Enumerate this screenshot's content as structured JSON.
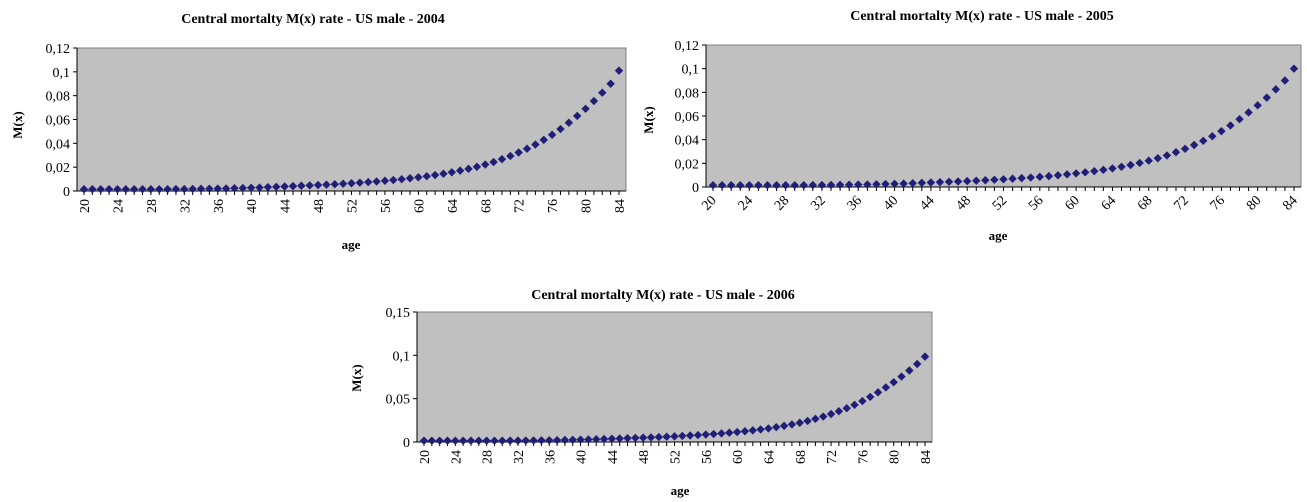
{
  "chart_data": [
    {
      "type": "scatter",
      "title": "Central mortalty M(x) rate - US male - 2004",
      "xlabel": "age",
      "ylabel": "M(x)",
      "ylim": [
        0,
        0.12
      ],
      "yticks": [
        "0",
        "0,02",
        "0,04",
        "0,06",
        "0,08",
        "0,1",
        "0,12"
      ],
      "xticks": [
        "20",
        "24",
        "28",
        "32",
        "36",
        "40",
        "44",
        "48",
        "52",
        "56",
        "60",
        "64",
        "68",
        "72",
        "76",
        "80",
        "84"
      ],
      "xtick_rotation": "vertical",
      "marker": "diamond",
      "color": "#1f1f7a",
      "plot_background": "#c0c0c0",
      "series": [
        {
          "x": [
            20,
            21,
            22,
            23,
            24,
            25,
            26,
            27,
            28,
            29,
            30,
            31,
            32,
            33,
            34,
            35,
            36,
            37,
            38,
            39,
            40,
            41,
            42,
            43,
            44,
            45,
            46,
            47,
            48,
            49,
            50,
            51,
            52,
            53,
            54,
            55,
            56,
            57,
            58,
            59,
            60,
            61,
            62,
            63,
            64,
            65,
            66,
            67,
            68,
            69,
            70,
            71,
            72,
            73,
            74,
            75,
            76,
            77,
            78,
            79,
            80,
            81,
            82,
            83,
            84
          ],
          "values": [
            0.0015,
            0.0015,
            0.0015,
            0.0015,
            0.0015,
            0.0015,
            0.0015,
            0.0015,
            0.0015,
            0.0015,
            0.0015,
            0.0016,
            0.0016,
            0.0017,
            0.0018,
            0.0019,
            0.002,
            0.0021,
            0.0023,
            0.0025,
            0.0027,
            0.0029,
            0.0032,
            0.0035,
            0.0038,
            0.0041,
            0.0044,
            0.0047,
            0.005,
            0.0053,
            0.0057,
            0.0061,
            0.0065,
            0.007,
            0.0075,
            0.008,
            0.0086,
            0.0092,
            0.0099,
            0.0107,
            0.0115,
            0.0124,
            0.0134,
            0.0145,
            0.0157,
            0.0171,
            0.0186,
            0.0203,
            0.0222,
            0.0243,
            0.0267,
            0.0294,
            0.0323,
            0.0355,
            0.039,
            0.0429,
            0.0472,
            0.052,
            0.0573,
            0.063,
            0.069,
            0.0755,
            0.0825,
            0.09,
            0.101
          ]
        }
      ]
    },
    {
      "type": "scatter",
      "title": "Central mortalty M(x) rate - US male - 2005",
      "xlabel": "age",
      "ylabel": "M(x)",
      "ylim": [
        0,
        0.12
      ],
      "yticks": [
        "0",
        "0,02",
        "0,04",
        "0,06",
        "0,08",
        "0,1",
        "0,12"
      ],
      "xticks": [
        "20",
        "24",
        "28",
        "32",
        "36",
        "40",
        "44",
        "48",
        "52",
        "56",
        "60",
        "64",
        "68",
        "72",
        "76",
        "80",
        "84"
      ],
      "xtick_rotation": "diagonal",
      "marker": "diamond",
      "color": "#1f1f7a",
      "plot_background": "#c0c0c0",
      "series": [
        {
          "x": [
            20,
            21,
            22,
            23,
            24,
            25,
            26,
            27,
            28,
            29,
            30,
            31,
            32,
            33,
            34,
            35,
            36,
            37,
            38,
            39,
            40,
            41,
            42,
            43,
            44,
            45,
            46,
            47,
            48,
            49,
            50,
            51,
            52,
            53,
            54,
            55,
            56,
            57,
            58,
            59,
            60,
            61,
            62,
            63,
            64,
            65,
            66,
            67,
            68,
            69,
            70,
            71,
            72,
            73,
            74,
            75,
            76,
            77,
            78,
            79,
            80,
            81,
            82,
            83,
            84
          ],
          "values": [
            0.0015,
            0.0015,
            0.0015,
            0.0015,
            0.0015,
            0.0015,
            0.0015,
            0.0015,
            0.0015,
            0.0015,
            0.0015,
            0.0016,
            0.0016,
            0.0017,
            0.0018,
            0.0019,
            0.002,
            0.0021,
            0.0023,
            0.0025,
            0.0027,
            0.0029,
            0.0032,
            0.0035,
            0.0038,
            0.0041,
            0.0044,
            0.0047,
            0.005,
            0.0053,
            0.0057,
            0.0061,
            0.0065,
            0.007,
            0.0075,
            0.008,
            0.0086,
            0.0092,
            0.0099,
            0.0107,
            0.0115,
            0.0124,
            0.0134,
            0.0145,
            0.0157,
            0.0171,
            0.0186,
            0.0203,
            0.0222,
            0.0243,
            0.0267,
            0.0294,
            0.0323,
            0.0355,
            0.039,
            0.0429,
            0.0472,
            0.052,
            0.0573,
            0.063,
            0.069,
            0.0755,
            0.0825,
            0.09,
            0.1
          ]
        }
      ]
    },
    {
      "type": "scatter",
      "title": "Central mortalty M(x) rate - US male - 2006",
      "xlabel": "age",
      "ylabel": "M(x)",
      "ylim": [
        0,
        0.15
      ],
      "yticks": [
        "0",
        "0,05",
        "0,1",
        "0,15"
      ],
      "xticks": [
        "20",
        "24",
        "28",
        "32",
        "36",
        "40",
        "44",
        "48",
        "52",
        "56",
        "60",
        "64",
        "68",
        "72",
        "76",
        "80",
        "84"
      ],
      "xtick_rotation": "vertical",
      "marker": "diamond",
      "color": "#1f1f7a",
      "plot_background": "#c0c0c0",
      "series": [
        {
          "x": [
            20,
            21,
            22,
            23,
            24,
            25,
            26,
            27,
            28,
            29,
            30,
            31,
            32,
            33,
            34,
            35,
            36,
            37,
            38,
            39,
            40,
            41,
            42,
            43,
            44,
            45,
            46,
            47,
            48,
            49,
            50,
            51,
            52,
            53,
            54,
            55,
            56,
            57,
            58,
            59,
            60,
            61,
            62,
            63,
            64,
            65,
            66,
            67,
            68,
            69,
            70,
            71,
            72,
            73,
            74,
            75,
            76,
            77,
            78,
            79,
            80,
            81,
            82,
            83,
            84
          ],
          "values": [
            0.0015,
            0.0015,
            0.0015,
            0.0015,
            0.0015,
            0.0015,
            0.0015,
            0.0015,
            0.0015,
            0.0015,
            0.0015,
            0.0016,
            0.0016,
            0.0017,
            0.0018,
            0.0019,
            0.002,
            0.0021,
            0.0023,
            0.0025,
            0.0027,
            0.0029,
            0.0032,
            0.0035,
            0.0038,
            0.0041,
            0.0044,
            0.0047,
            0.005,
            0.0053,
            0.0057,
            0.0061,
            0.0065,
            0.007,
            0.0075,
            0.008,
            0.0086,
            0.0092,
            0.0099,
            0.0107,
            0.0115,
            0.0124,
            0.0134,
            0.0145,
            0.0157,
            0.0171,
            0.0186,
            0.0203,
            0.0222,
            0.0243,
            0.0267,
            0.0294,
            0.0323,
            0.0355,
            0.039,
            0.0429,
            0.0472,
            0.052,
            0.0573,
            0.063,
            0.069,
            0.0755,
            0.0825,
            0.09,
            0.0985
          ]
        }
      ]
    }
  ]
}
